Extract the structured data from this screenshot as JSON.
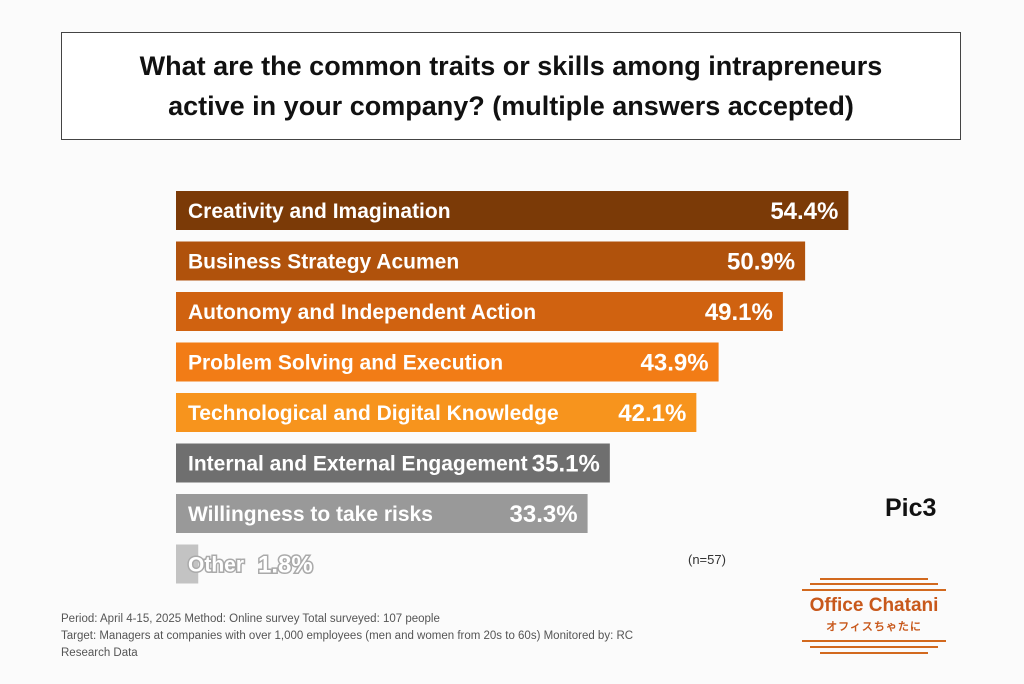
{
  "title": "What are the common traits or skills among intrapreneurs\nactive in your company? (multiple answers accepted)",
  "pic_label": "Pic3",
  "sample_note": "(n=57)",
  "footer": {
    "line1": "Period: April 4-15, 2025 Method: Online survey Total surveyed: 107 people",
    "line2": "Target: Managers at companies with over 1,000 employees (men and women from 20s to 60s) Monitored by: RC",
    "line3": "Research Data"
  },
  "logo": {
    "name": "Office Chatani",
    "subtitle": "オフィスちゃたに",
    "color": "#c8581b"
  },
  "chart_data": {
    "type": "bar",
    "orientation": "horizontal",
    "title": "What are the common traits or skills among intrapreneurs active in your company? (multiple answers accepted)",
    "xlabel": "",
    "ylabel": "",
    "unit": "%",
    "grid": false,
    "categories": [
      "Creativity and Imagination",
      "Business Strategy Acumen",
      "Autonomy and Independent Action",
      "Problem Solving and Execution",
      "Technological and Digital Knowledge",
      "Internal and External Engagement",
      "Willingness to take risks",
      "Other"
    ],
    "values": [
      54.4,
      50.9,
      49.1,
      43.9,
      42.1,
      35.1,
      33.3,
      1.8
    ],
    "value_labels": [
      "54.4%",
      "50.9%",
      "49.1%",
      "43.9%",
      "42.1%",
      "35.1%",
      "33.3%",
      "1.8%"
    ],
    "colors": [
      "#7b3a07",
      "#b0520c",
      "#d06210",
      "#f27c16",
      "#f7941d",
      "#6f6f6f",
      "#999999",
      "#c3c3c3"
    ],
    "label_colors": [
      "#ffffff",
      "#ffffff",
      "#ffffff",
      "#ffffff",
      "#ffffff",
      "#ffffff",
      "#ffffff",
      "#ffffff"
    ],
    "value_outline_colors": [
      "none",
      "none",
      "none",
      "#f27c16",
      "#f7941d",
      "#6f6f6f",
      "none",
      "#c3c3c3"
    ]
  }
}
